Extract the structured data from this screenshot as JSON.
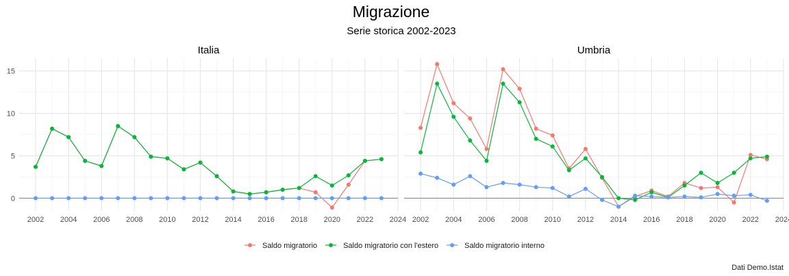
{
  "title": "Migrazione",
  "subtitle": "Serie storica 2002-2023",
  "caption": "Dati Demo.Istat",
  "colors": {
    "saldo": "#F8766D",
    "estero": "#00BA38",
    "interno": "#619CFF",
    "grid_major": "#e6e6e6",
    "grid_minor": "#f2f2f2",
    "zero_line": "#8c8c8c"
  },
  "chart_data": {
    "type": "line",
    "x_ticks": [
      2002,
      2004,
      2006,
      2008,
      2010,
      2012,
      2014,
      2016,
      2018,
      2020,
      2022,
      2024
    ],
    "y_ticks": [
      0,
      5,
      10,
      15
    ],
    "xlim": [
      2001.0,
      2024.0
    ],
    "ylim": [
      -1.5,
      16.5
    ],
    "grid": true,
    "legend_position": "bottom",
    "legend": [
      "Saldo migratorio",
      "Saldo migratorio con l'estero",
      "Saldo migratorio interno"
    ],
    "panels": [
      {
        "title": "Italia",
        "x": [
          2002,
          2003,
          2004,
          2005,
          2006,
          2007,
          2008,
          2009,
          2010,
          2011,
          2012,
          2013,
          2014,
          2015,
          2016,
          2017,
          2018,
          2019,
          2020,
          2021,
          2022,
          2023
        ],
        "series": [
          {
            "name": "Saldo migratorio",
            "values": [
              3.7,
              8.2,
              7.2,
              4.4,
              3.8,
              8.5,
              7.2,
              4.9,
              4.7,
              3.4,
              4.2,
              2.6,
              0.8,
              0.5,
              0.7,
              1.0,
              1.2,
              0.7,
              -1.1,
              1.6,
              4.4,
              4.6
            ]
          },
          {
            "name": "Saldo migratorio con l'estero",
            "values": [
              3.7,
              8.2,
              7.2,
              4.4,
              3.8,
              8.5,
              7.2,
              4.9,
              4.7,
              3.4,
              4.2,
              2.6,
              0.8,
              0.5,
              0.7,
              1.0,
              1.2,
              2.6,
              1.5,
              2.7,
              4.4,
              4.6
            ]
          },
          {
            "name": "Saldo migratorio interno",
            "values": [
              0,
              0,
              0,
              0,
              0,
              0,
              0,
              0,
              0,
              0,
              0,
              0,
              0,
              0,
              0,
              0,
              0,
              0,
              0,
              0,
              0,
              0
            ]
          }
        ]
      },
      {
        "title": "Umbria",
        "x": [
          2002,
          2003,
          2004,
          2005,
          2006,
          2007,
          2008,
          2009,
          2010,
          2011,
          2012,
          2013,
          2014,
          2015,
          2016,
          2017,
          2018,
          2019,
          2020,
          2021,
          2022,
          2023
        ],
        "series": [
          {
            "name": "Saldo migratorio",
            "values": [
              8.3,
              15.8,
              11.2,
              9.4,
              5.8,
              15.2,
              12.9,
              8.2,
              7.4,
              3.5,
              5.8,
              2.4,
              -1.0,
              0.2,
              0.9,
              0.2,
              1.8,
              1.2,
              1.3,
              -0.5,
              5.1,
              4.6
            ]
          },
          {
            "name": "Saldo migratorio con l'estero",
            "values": [
              5.4,
              13.5,
              9.6,
              6.8,
              4.4,
              13.5,
              11.3,
              7.0,
              6.1,
              3.3,
              4.7,
              2.5,
              0.0,
              -0.2,
              0.7,
              0.1,
              1.5,
              3.0,
              1.8,
              3.0,
              4.7,
              4.9
            ]
          },
          {
            "name": "Saldo migratorio interno",
            "values": [
              2.9,
              2.4,
              1.6,
              2.6,
              1.3,
              1.8,
              1.6,
              1.3,
              1.2,
              0.2,
              1.1,
              -0.2,
              -1.0,
              0.3,
              0.2,
              0.1,
              0.2,
              0.1,
              0.5,
              0.3,
              0.4,
              -0.3
            ]
          }
        ]
      }
    ]
  }
}
